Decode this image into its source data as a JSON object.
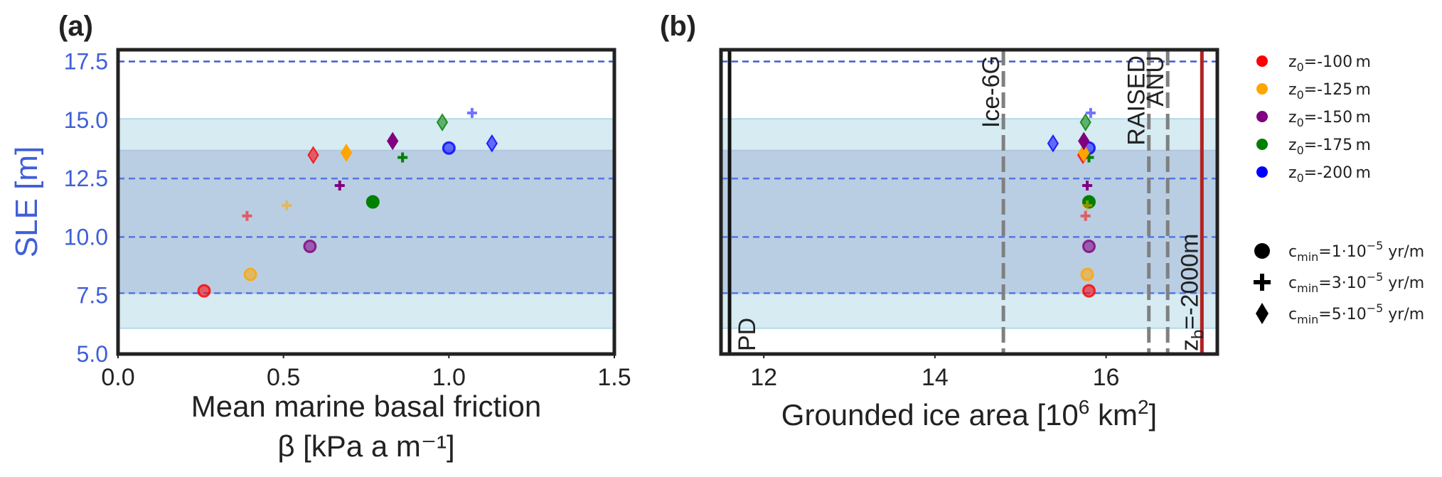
{
  "chart_data": [
    {
      "type": "scatter",
      "panel_label": "(a)",
      "xlabel_line1": "Mean marine basal friction",
      "xlabel_line2": "β [kPa a m⁻¹]",
      "ylabel": "SLE [m]",
      "xlim": [
        0.0,
        1.5
      ],
      "ylim": [
        5.0,
        18.0
      ],
      "xticks": [
        0.0,
        0.5,
        1.0,
        1.5
      ],
      "xtick_labels": [
        "0.0",
        "0.5",
        "1.0",
        "1.5"
      ],
      "yticks": [
        5.0,
        7.5,
        10.0,
        12.5,
        15.0,
        17.5
      ],
      "ytick_labels": [
        "5.0",
        "7.5",
        "10.0",
        "12.5",
        "15.0",
        "17.5"
      ],
      "points": [
        {
          "x": 0.26,
          "y": 7.7,
          "z0": -100,
          "cmin": 1,
          "alpha": 0.55
        },
        {
          "x": 0.4,
          "y": 8.4,
          "z0": -125,
          "cmin": 1,
          "alpha": 0.55
        },
        {
          "x": 0.58,
          "y": 9.6,
          "z0": -150,
          "cmin": 1,
          "alpha": 0.55
        },
        {
          "x": 0.77,
          "y": 11.5,
          "z0": -175,
          "cmin": 1,
          "alpha": 1.0
        },
        {
          "x": 1.0,
          "y": 13.8,
          "z0": -200,
          "cmin": 1,
          "alpha": 0.55
        },
        {
          "x": 0.39,
          "y": 10.9,
          "z0": -100,
          "cmin": 3,
          "alpha": 0.55
        },
        {
          "x": 0.51,
          "y": 11.35,
          "z0": -125,
          "cmin": 3,
          "alpha": 0.55
        },
        {
          "x": 0.67,
          "y": 12.2,
          "z0": -150,
          "cmin": 3,
          "alpha": 1.0
        },
        {
          "x": 0.86,
          "y": 13.4,
          "z0": -175,
          "cmin": 3,
          "alpha": 1.0
        },
        {
          "x": 1.07,
          "y": 15.3,
          "z0": -200,
          "cmin": 3,
          "alpha": 0.55
        },
        {
          "x": 0.59,
          "y": 13.5,
          "z0": -100,
          "cmin": 5,
          "alpha": 0.55
        },
        {
          "x": 0.69,
          "y": 13.6,
          "z0": -125,
          "cmin": 5,
          "alpha": 1.0
        },
        {
          "x": 0.83,
          "y": 14.1,
          "z0": -150,
          "cmin": 5,
          "alpha": 1.0
        },
        {
          "x": 0.98,
          "y": 14.9,
          "z0": -175,
          "cmin": 5,
          "alpha": 0.55
        },
        {
          "x": 1.13,
          "y": 14.0,
          "z0": -200,
          "cmin": 5,
          "alpha": 0.55
        }
      ]
    },
    {
      "type": "scatter",
      "panel_label": "(b)",
      "xlabel_main": "Grounded ice area [10",
      "xlabel_exp": "6",
      "xlabel_tail": " km",
      "xlabel_exp2": "2",
      "xlabel_end": "]",
      "xlim": [
        11.5,
        17.3
      ],
      "ylim": [
        5.0,
        18.0
      ],
      "xticks": [
        12,
        14,
        16
      ],
      "xtick_labels": [
        "12",
        "14",
        "16"
      ],
      "vlines": [
        {
          "x": 11.6,
          "label": "PD",
          "style": "solid",
          "color": "#111111",
          "label_pos": "bottom"
        },
        {
          "x": 14.8,
          "label": "Ice-6G",
          "style": "dashed",
          "color": "#808080",
          "label_pos": "top"
        },
        {
          "x": 16.5,
          "label": "RAISED",
          "style": "dashed",
          "color": "#808080",
          "label_pos": "top"
        },
        {
          "x": 16.72,
          "label": "ANU",
          "style": "dashed",
          "color": "#808080",
          "label_pos": "top"
        },
        {
          "x": 17.12,
          "label": "z_b=-2000m",
          "style": "solid",
          "color": "#b22222",
          "label_pos": "bottom"
        }
      ],
      "vline_label_zb_main": "z",
      "vline_label_zb_sub": "b",
      "vline_label_zb_tail": "=-2000m",
      "points": [
        {
          "x": 15.8,
          "y": 7.7,
          "z0": -100,
          "cmin": 1,
          "alpha": 0.55
        },
        {
          "x": 15.78,
          "y": 8.4,
          "z0": -125,
          "cmin": 1,
          "alpha": 0.55
        },
        {
          "x": 15.8,
          "y": 9.6,
          "z0": -150,
          "cmin": 1,
          "alpha": 0.55
        },
        {
          "x": 15.8,
          "y": 11.5,
          "z0": -175,
          "cmin": 1,
          "alpha": 1.0
        },
        {
          "x": 15.8,
          "y": 13.8,
          "z0": -200,
          "cmin": 1,
          "alpha": 0.55
        },
        {
          "x": 15.76,
          "y": 10.9,
          "z0": -100,
          "cmin": 3,
          "alpha": 0.55
        },
        {
          "x": 15.78,
          "y": 11.35,
          "z0": -125,
          "cmin": 3,
          "alpha": 0.55
        },
        {
          "x": 15.78,
          "y": 12.2,
          "z0": -150,
          "cmin": 3,
          "alpha": 1.0
        },
        {
          "x": 15.8,
          "y": 13.4,
          "z0": -175,
          "cmin": 3,
          "alpha": 1.0
        },
        {
          "x": 15.82,
          "y": 15.3,
          "z0": -200,
          "cmin": 3,
          "alpha": 0.55
        },
        {
          "x": 15.73,
          "y": 13.5,
          "z0": -100,
          "cmin": 5,
          "alpha": 0.55
        },
        {
          "x": 15.74,
          "y": 13.6,
          "z0": -125,
          "cmin": 5,
          "alpha": 1.0
        },
        {
          "x": 15.74,
          "y": 14.1,
          "z0": -150,
          "cmin": 5,
          "alpha": 1.0
        },
        {
          "x": 15.76,
          "y": 14.9,
          "z0": -175,
          "cmin": 5,
          "alpha": 0.55
        },
        {
          "x": 15.38,
          "y": 14.0,
          "z0": -200,
          "cmin": 5,
          "alpha": 0.55
        }
      ]
    }
  ],
  "shared": {
    "bands": [
      {
        "y0": 6.1,
        "y1": 15.05,
        "color": "#add8e6",
        "alpha": 0.5
      },
      {
        "y0": 7.6,
        "y1": 13.7,
        "color": "#b0c4de",
        "alpha": 0.75
      }
    ],
    "hlines": [
      {
        "y": 7.6,
        "color": "#4169e1"
      },
      {
        "y": 10.0,
        "color": "#4169e1"
      },
      {
        "y": 12.5,
        "color": "#4169e1"
      },
      {
        "y": 17.5,
        "color": "#1f3fd0"
      }
    ],
    "colors": {
      "-100": "#ff0000",
      "-125": "#ffa500",
      "-150": "#800080",
      "-175": "#008000",
      "-200": "#0000ff"
    }
  },
  "legend": {
    "z0_entries": [
      {
        "z0": "-100",
        "base": "z",
        "sub": "0",
        "tail": "=-100 m"
      },
      {
        "z0": "-125",
        "base": "z",
        "sub": "0",
        "tail": "=-125 m"
      },
      {
        "z0": "-150",
        "base": "z",
        "sub": "0",
        "tail": "=-150 m"
      },
      {
        "z0": "-175",
        "base": "z",
        "sub": "0",
        "tail": "=-175 m"
      },
      {
        "z0": "-200",
        "base": "z",
        "sub": "0",
        "tail": "=-200 m"
      }
    ],
    "cmin_entries": [
      {
        "marker": "circle",
        "base": "c",
        "sub": "min",
        "mid": "=1·10",
        "exp": "−5",
        "tail": " yr/m"
      },
      {
        "marker": "plus",
        "base": "c",
        "sub": "min",
        "mid": "=3·10",
        "exp": "−5",
        "tail": " yr/m"
      },
      {
        "marker": "diamond",
        "base": "c",
        "sub": "min",
        "mid": "=5·10",
        "exp": "−5",
        "tail": " yr/m"
      }
    ]
  }
}
